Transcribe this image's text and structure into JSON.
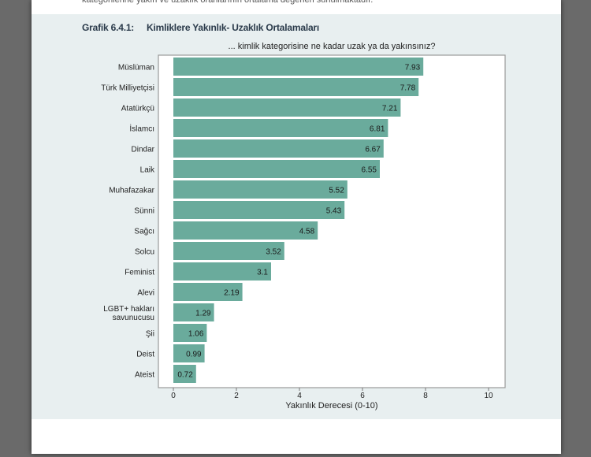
{
  "page": {
    "intro_text": "kategorilerine yakın ve uzaklık oranlarının ortalama değerleri sunulmaktadır."
  },
  "figure": {
    "label": "Grafik 6.4.1:",
    "title": "Kimliklere Yakınlık- Uzaklık Ortalamaları"
  },
  "colors": {
    "bar": "#6aab9c",
    "panel": "#e8eff0",
    "plot_border": "#9a9a9a"
  },
  "chart_data": {
    "type": "bar",
    "orientation": "horizontal",
    "title": "... kimlik kategorisine ne kadar uzak ya da yakınsınız?",
    "xlabel": "Yakınlık Derecesi (0-10)",
    "ylabel": "",
    "xlim": [
      0,
      10
    ],
    "xticks": [
      "0",
      "2",
      "4",
      "6",
      "8",
      "10"
    ],
    "categories": [
      "Müslüman",
      "Türk Milliyetçisi",
      "Atatürkçü",
      "İslamcı",
      "Dindar",
      "Laik",
      "Muhafazakar",
      "Sünni",
      "Sağcı",
      "Solcu",
      "Feminist",
      "Alevi",
      "LGBT+ hakları savunucusu",
      "Şii",
      "Deist",
      "Ateist"
    ],
    "category_lines": [
      [
        "Müslüman"
      ],
      [
        "Türk Milliyetçisi"
      ],
      [
        "Atatürkçü"
      ],
      [
        "İslamcı"
      ],
      [
        "Dindar"
      ],
      [
        "Laik"
      ],
      [
        "Muhafazakar"
      ],
      [
        "Sünni"
      ],
      [
        "Sağcı"
      ],
      [
        "Solcu"
      ],
      [
        "Feminist"
      ],
      [
        "Alevi"
      ],
      [
        "LGBT+ hakları",
        "savunucusu"
      ],
      [
        "Şii"
      ],
      [
        "Deist"
      ],
      [
        "Ateist"
      ]
    ],
    "values": [
      7.93,
      7.78,
      7.21,
      6.81,
      6.67,
      6.55,
      5.52,
      5.43,
      4.58,
      3.52,
      3.1,
      2.19,
      1.29,
      1.06,
      0.99,
      0.72
    ],
    "value_labels": [
      "7.93",
      "7.78",
      "7.21",
      "6.81",
      "6.67",
      "6.55",
      "5.52",
      "5.43",
      "4.58",
      "3.52",
      "3.1",
      "2.19",
      "1.29",
      "1.06",
      "0.99",
      "0.72"
    ],
    "grid": false,
    "legend": "none"
  }
}
